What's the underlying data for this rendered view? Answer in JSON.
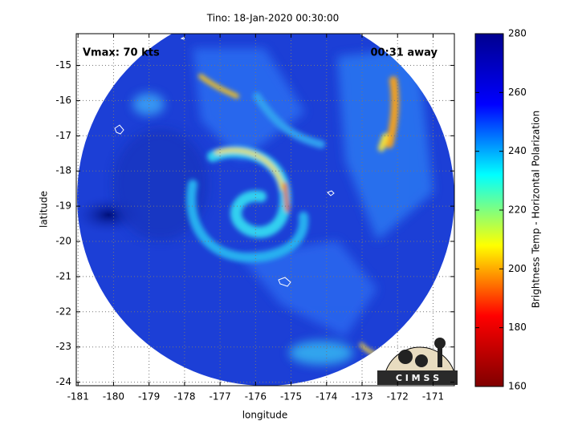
{
  "chart_data": {
    "type": "image-map",
    "title": "Tino: 18-Jan-2020 00:30:00",
    "x_label": "longitude",
    "y_label": "latitude",
    "xlim": [
      -181.05,
      -170.4
    ],
    "ylim": [
      -24.1,
      -14.1
    ],
    "xticks": [
      -181,
      -180,
      -179,
      -178,
      -177,
      -176,
      -175,
      -174,
      -173,
      -172,
      -171
    ],
    "yticks": [
      -15,
      -16,
      -17,
      -18,
      -19,
      -20,
      -21,
      -22,
      -23,
      -24
    ],
    "grid": true,
    "annotations": [
      {
        "text": "Vmax: 70 kts",
        "corner": "top-left"
      },
      {
        "text": "00:31 away",
        "corner": "top-right"
      }
    ],
    "logo_text": "C I M S S",
    "colorbar": {
      "label": "Brightness Temp - Horizontal Polarization",
      "lim": [
        160,
        280
      ],
      "ticks": [
        160,
        180,
        200,
        220,
        240,
        260,
        280
      ],
      "colormap": [
        "#800000",
        "#ff0000",
        "#ffff00",
        "#00ffff",
        "#0000ff",
        "#00008f"
      ]
    }
  }
}
